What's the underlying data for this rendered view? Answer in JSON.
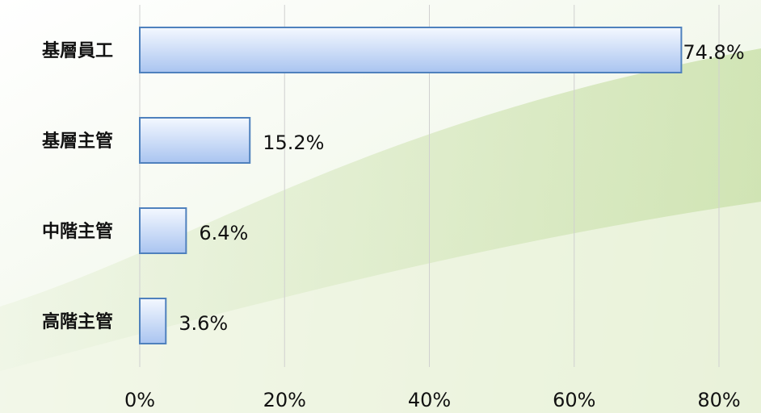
{
  "chart_data": {
    "type": "bar",
    "orientation": "horizontal",
    "categories": [
      "基層員工",
      "基層主管",
      "中階主管",
      "高階主管"
    ],
    "values": [
      74.8,
      15.2,
      6.4,
      3.6
    ],
    "value_labels": [
      "74.8%",
      "15.2%",
      "6.4%",
      "3.6%"
    ],
    "color": "#4f81bd",
    "xlim": [
      0,
      80
    ],
    "xticks": [
      {
        "value": 0,
        "label": "0%"
      },
      {
        "value": 20,
        "label": "20%"
      },
      {
        "value": 40,
        "label": "40%"
      },
      {
        "value": 60,
        "label": "60%"
      },
      {
        "value": 80,
        "label": "80%"
      }
    ],
    "grid": true
  }
}
